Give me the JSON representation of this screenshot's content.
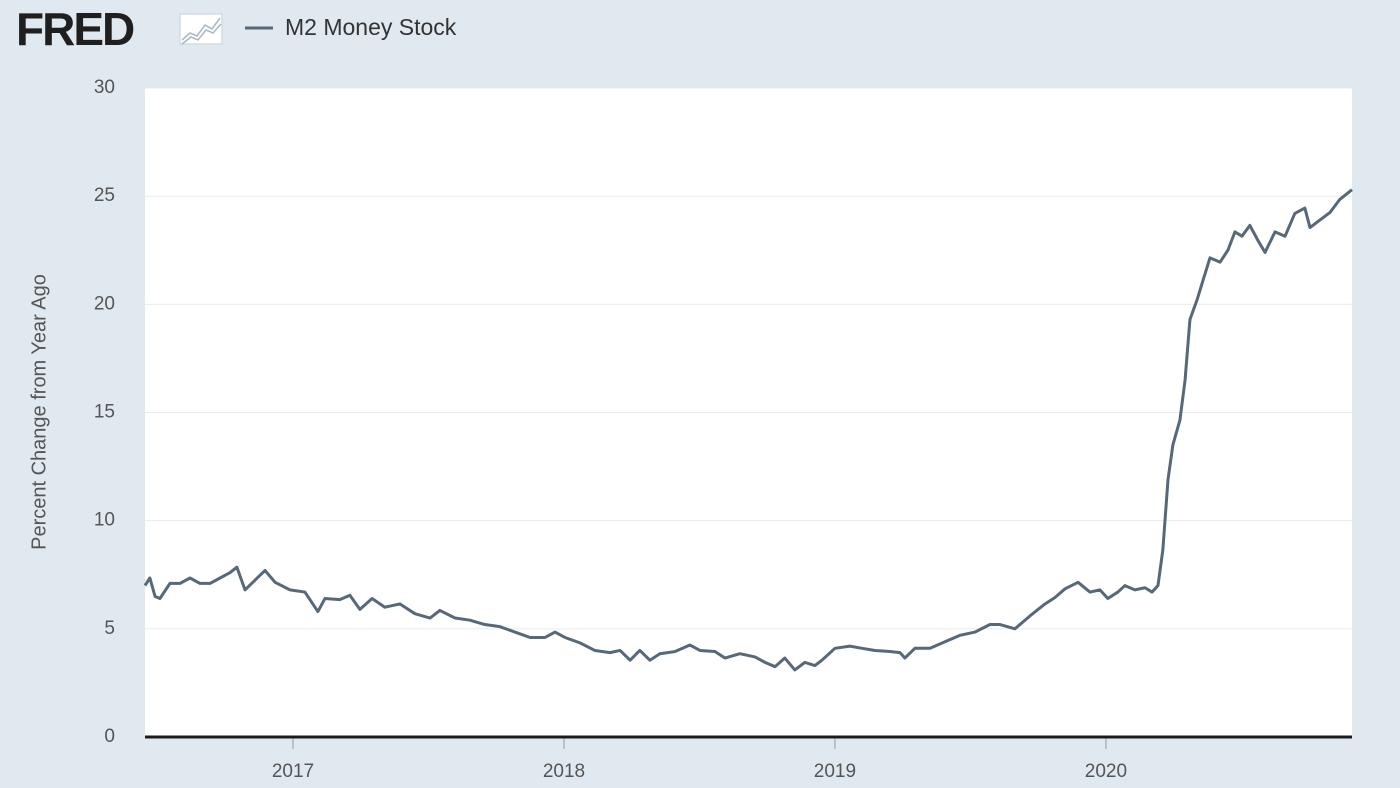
{
  "logo": "FRED",
  "chart_data": {
    "type": "line",
    "y_label": "Percent Change from Year Ago",
    "x": [
      2016.454,
      2016.472,
      2016.491,
      2016.509,
      2016.546,
      2016.583,
      2016.62,
      2016.657,
      2016.694,
      2016.731,
      2016.768,
      2016.793,
      2016.823,
      2016.86,
      2016.897,
      2016.934,
      2016.989,
      2017.044,
      2017.092,
      2017.118,
      2017.173,
      2017.21,
      2017.247,
      2017.292,
      2017.339,
      2017.395,
      2017.45,
      2017.506,
      2017.542,
      2017.598,
      2017.653,
      2017.708,
      2017.764,
      2017.819,
      2017.875,
      2017.93,
      2017.967,
      2018.004,
      2018.059,
      2018.114,
      2018.17,
      2018.207,
      2018.244,
      2018.28,
      2018.317,
      2018.354,
      2018.41,
      2018.465,
      2018.502,
      2018.557,
      2018.594,
      2018.649,
      2018.705,
      2018.742,
      2018.779,
      2018.815,
      2018.852,
      2018.889,
      2018.926,
      2018.952,
      2019.0,
      2019.055,
      2019.1,
      2019.148,
      2019.203,
      2019.24,
      2019.258,
      2019.295,
      2019.351,
      2019.406,
      2019.461,
      2019.517,
      2019.572,
      2019.609,
      2019.664,
      2019.72,
      2019.775,
      2019.812,
      2019.849,
      2019.897,
      2019.941,
      2019.978,
      2020.007,
      2020.044,
      2020.07,
      2020.107,
      2020.144,
      2020.17,
      2020.192,
      2020.21,
      2020.229,
      2020.247,
      2020.273,
      2020.292,
      2020.31,
      2020.336,
      2020.358,
      2020.384,
      2020.421,
      2020.45,
      2020.476,
      2020.502,
      2020.531,
      2020.561,
      2020.587,
      2020.624,
      2020.661,
      2020.697,
      2020.734,
      2020.753,
      2020.79,
      2020.827,
      2020.863,
      2020.908
    ],
    "series": [
      {
        "name": "M2 Money Stock",
        "color": "#56687a",
        "values": [
          7.0,
          7.35,
          6.5,
          6.4,
          7.1,
          7.1,
          7.35,
          7.1,
          7.1,
          7.35,
          7.6,
          7.85,
          6.8,
          7.25,
          7.7,
          7.15,
          6.8,
          6.7,
          5.8,
          6.4,
          6.35,
          6.55,
          5.9,
          6.4,
          6.0,
          6.15,
          5.7,
          5.5,
          5.85,
          5.5,
          5.4,
          5.2,
          5.1,
          4.85,
          4.6,
          4.6,
          4.85,
          4.6,
          4.35,
          4.0,
          3.9,
          4.0,
          3.55,
          4.0,
          3.55,
          3.85,
          3.95,
          4.25,
          4.0,
          3.95,
          3.65,
          3.85,
          3.7,
          3.45,
          3.25,
          3.65,
          3.1,
          3.45,
          3.3,
          3.55,
          4.1,
          4.2,
          4.1,
          4.0,
          3.95,
          3.9,
          3.65,
          4.1,
          4.1,
          4.4,
          4.7,
          4.85,
          5.2,
          5.2,
          5.0,
          5.6,
          6.15,
          6.45,
          6.85,
          7.15,
          6.7,
          6.8,
          6.4,
          6.7,
          7.0,
          6.8,
          6.9,
          6.7,
          7.0,
          8.65,
          11.9,
          13.5,
          14.65,
          16.5,
          19.3,
          20.2,
          21.1,
          22.15,
          21.95,
          22.5,
          23.35,
          23.15,
          23.65,
          22.95,
          22.4,
          23.35,
          23.15,
          24.2,
          24.45,
          23.55,
          23.9,
          24.25,
          24.85,
          25.3
        ]
      }
    ],
    "xlim": [
      2016.454,
      2020.908
    ],
    "xticks": [
      2017,
      2018,
      2019,
      2020
    ],
    "ylim": [
      0,
      30
    ],
    "yticks": [
      0,
      5,
      10,
      15,
      20,
      25,
      30
    ],
    "grid": true
  }
}
